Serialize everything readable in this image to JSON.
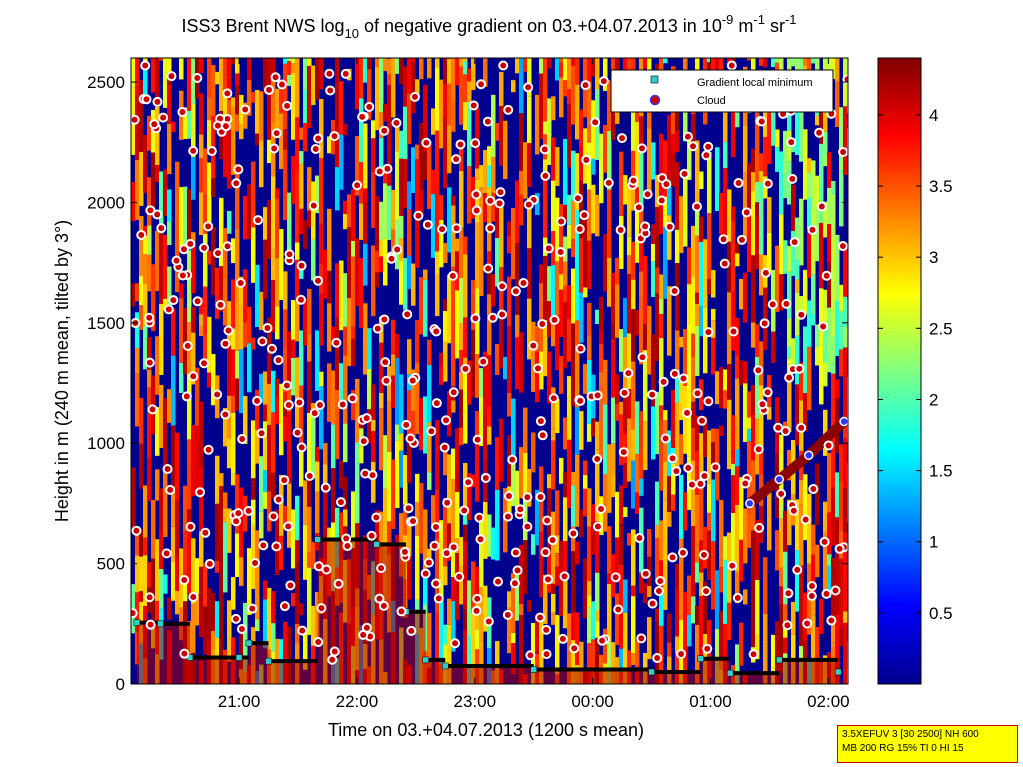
{
  "chart_data": {
    "type": "heatmap",
    "title": "ISS3 Brent NWS log10 of negative gradient on 03.+04.07.2013 in 10-9 m-1 sr-1",
    "title_parts": {
      "prefix": "ISS3 Brent NWS log",
      "sub": "10",
      "mid": " of negative gradient on 03.+04.07.2013 in 10",
      "sup1": "-9",
      "unit1": " m",
      "sup2": "-1",
      "unit2": " sr",
      "sup3": "-1"
    },
    "xlabel": "Time on 03.+04.07.2013 (1200 s mean)",
    "ylabel": "Height in m (240 m mean, tilted by 3°)",
    "x_ticks": [
      "21:00",
      "22:00",
      "23:00",
      "00:00",
      "01:00",
      "02:00"
    ],
    "xlim": [
      "20:05",
      "02:10"
    ],
    "y_ticks": [
      0,
      500,
      1000,
      1500,
      2000,
      2500
    ],
    "ylim": [
      0,
      2600
    ],
    "colorbar": {
      "ticks": [
        0.5,
        1,
        1.5,
        2,
        2.5,
        3,
        3.5,
        4
      ],
      "range": [
        0,
        4.4
      ],
      "colormap": "jet"
    },
    "legend": {
      "position": "top-right",
      "entries": [
        {
          "label": "Gradient local minimum",
          "marker": "square",
          "color": "#33cccc"
        },
        {
          "label": "Cloud",
          "marker": "circle",
          "color": "#cc0000"
        }
      ]
    },
    "ground_layer_top_series": [
      {
        "time": "20:08",
        "height": 255
      },
      {
        "time": "20:20",
        "height": 250
      },
      {
        "time": "20:35",
        "height": 110
      },
      {
        "time": "21:00",
        "height": 110
      },
      {
        "time": "21:05",
        "height": 170
      },
      {
        "time": "21:15",
        "height": 95
      },
      {
        "time": "21:40",
        "height": 600
      },
      {
        "time": "22:10",
        "height": 580
      },
      {
        "time": "22:25",
        "height": 300
      },
      {
        "time": "22:35",
        "height": 100
      },
      {
        "time": "22:45",
        "height": 75
      },
      {
        "time": "23:30",
        "height": 60
      },
      {
        "time": "00:30",
        "height": 50
      },
      {
        "time": "00:55",
        "height": 105
      },
      {
        "time": "01:10",
        "height": 45
      },
      {
        "time": "01:35",
        "height": 100
      },
      {
        "time": "02:05",
        "height": 50
      }
    ],
    "cloud_layer_series": [
      {
        "time": "01:20",
        "height": 750
      },
      {
        "time": "01:35",
        "height": 850
      },
      {
        "time": "01:50",
        "height": 950
      },
      {
        "time": "02:08",
        "height": 1090
      }
    ]
  },
  "settings_box": {
    "line1": "3.5XEFUV 3 [30 2500] NH 600",
    "line2": "MB 200 RG 15% TI 0 HI 15",
    "bg": "#ffff00",
    "border": "#cc0000"
  }
}
